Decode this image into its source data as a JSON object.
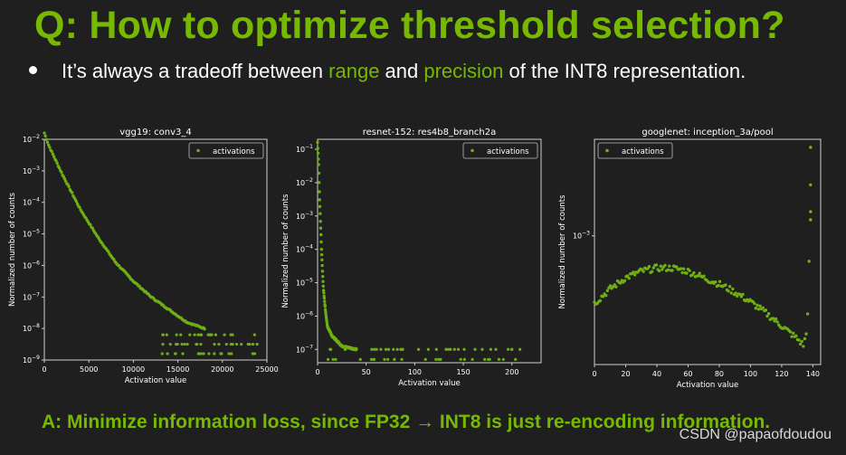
{
  "slide": {
    "title": "Q: How to optimize threshold selection?",
    "bullet_pre": "It’s always a tradeoff between ",
    "bullet_range": "range",
    "bullet_mid": " and ",
    "bullet_precision": "precision",
    "bullet_post": " of the INT8 representation.",
    "answer": "A: Minimize information loss, since FP32 → INT8 is just re-encoding information.",
    "watermark": "CSDN @papaofdoudou"
  },
  "colors": {
    "accent": "#76b900",
    "background": "#1f1f1f",
    "points": "#6fae14"
  },
  "chart_data": [
    {
      "type": "scatter",
      "title": "vgg19: conv3_4",
      "xlabel": "Activation value",
      "ylabel": "Normalized number of counts",
      "legend": "activations",
      "legend_position": "top-right",
      "xscale": "linear",
      "yscale": "log",
      "xlim": [
        0,
        25000
      ],
      "ylim_exp": [
        -9,
        -2
      ],
      "xticks": [
        0,
        5000,
        10000,
        15000,
        20000,
        25000
      ],
      "xtick_labels": [
        "0",
        "5000",
        "10000",
        "15000",
        "20000",
        "25000"
      ],
      "yticks_exp": [
        -9,
        -8,
        -7,
        -6,
        -5,
        -4,
        -3,
        -2
      ],
      "curve": [
        [
          0,
          -1.8
        ],
        [
          500,
          -2.2
        ],
        [
          1000,
          -2.5
        ],
        [
          2000,
          -3.1
        ],
        [
          4000,
          -4.2
        ],
        [
          6000,
          -5.1
        ],
        [
          8000,
          -5.9
        ],
        [
          10000,
          -6.5
        ],
        [
          12000,
          -7.0
        ],
        [
          14000,
          -7.4
        ],
        [
          16000,
          -7.8
        ],
        [
          17000,
          -7.9
        ],
        [
          18000,
          -8.0
        ]
      ],
      "scatter_tail": {
        "x_from": 13000,
        "x_to": 24000,
        "levels_exp": [
          -8.2,
          -8.5,
          -8.8
        ]
      }
    },
    {
      "type": "scatter",
      "title": "resnet-152: res4b8_branch2a",
      "xlabel": "Activation value",
      "ylabel": "Normalized number of counts",
      "legend": "activations",
      "legend_position": "top-right",
      "xscale": "linear",
      "yscale": "log",
      "xlim": [
        0,
        230
      ],
      "ylim_exp": [
        -7.4,
        -0.7
      ],
      "xticks": [
        0,
        50,
        100,
        150,
        200
      ],
      "xtick_labels": [
        "0",
        "50",
        "100",
        "150",
        "200"
      ],
      "yticks_exp": [
        -7,
        -6,
        -5,
        -4,
        -3,
        -2,
        -1
      ],
      "curve": [
        [
          0,
          -0.8
        ],
        [
          1,
          -1.4
        ],
        [
          2,
          -2.4
        ],
        [
          3,
          -3.2
        ],
        [
          4,
          -4.0
        ],
        [
          5,
          -4.6
        ],
        [
          6,
          -5.2
        ],
        [
          8,
          -5.8
        ],
        [
          10,
          -6.3
        ],
        [
          15,
          -6.6
        ],
        [
          25,
          -6.9
        ],
        [
          40,
          -7.0
        ]
      ],
      "scatter_tail": {
        "x_from": 10,
        "x_to": 210,
        "levels_exp": [
          -7.0,
          -7.3
        ]
      }
    },
    {
      "type": "scatter",
      "title": "googlenet: inception_3a/pool",
      "xlabel": "Activation value",
      "ylabel": "Normalized number of counts",
      "legend": "activations",
      "legend_position": "top-left",
      "xscale": "linear",
      "yscale": "log",
      "xlim": [
        0,
        145
      ],
      "ylim_exp": [
        -3.8,
        -2.4
      ],
      "xticks": [
        0,
        20,
        40,
        60,
        80,
        100,
        120,
        140
      ],
      "xtick_labels": [
        "0",
        "20",
        "40",
        "60",
        "80",
        "100",
        "120",
        "140"
      ],
      "yticks_exp": [
        -3
      ],
      "curve": [
        [
          0,
          -3.42
        ],
        [
          10,
          -3.33
        ],
        [
          20,
          -3.26
        ],
        [
          30,
          -3.22
        ],
        [
          40,
          -3.2
        ],
        [
          50,
          -3.2
        ],
        [
          60,
          -3.22
        ],
        [
          70,
          -3.26
        ],
        [
          80,
          -3.3
        ],
        [
          90,
          -3.35
        ],
        [
          100,
          -3.41
        ],
        [
          110,
          -3.48
        ],
        [
          120,
          -3.56
        ],
        [
          130,
          -3.64
        ],
        [
          134,
          -3.68
        ],
        [
          136,
          -3.6
        ],
        [
          137,
          -3.4
        ],
        [
          138,
          -3.0
        ],
        [
          138.5,
          -2.7
        ],
        [
          138.5,
          -2.45
        ]
      ]
    }
  ]
}
